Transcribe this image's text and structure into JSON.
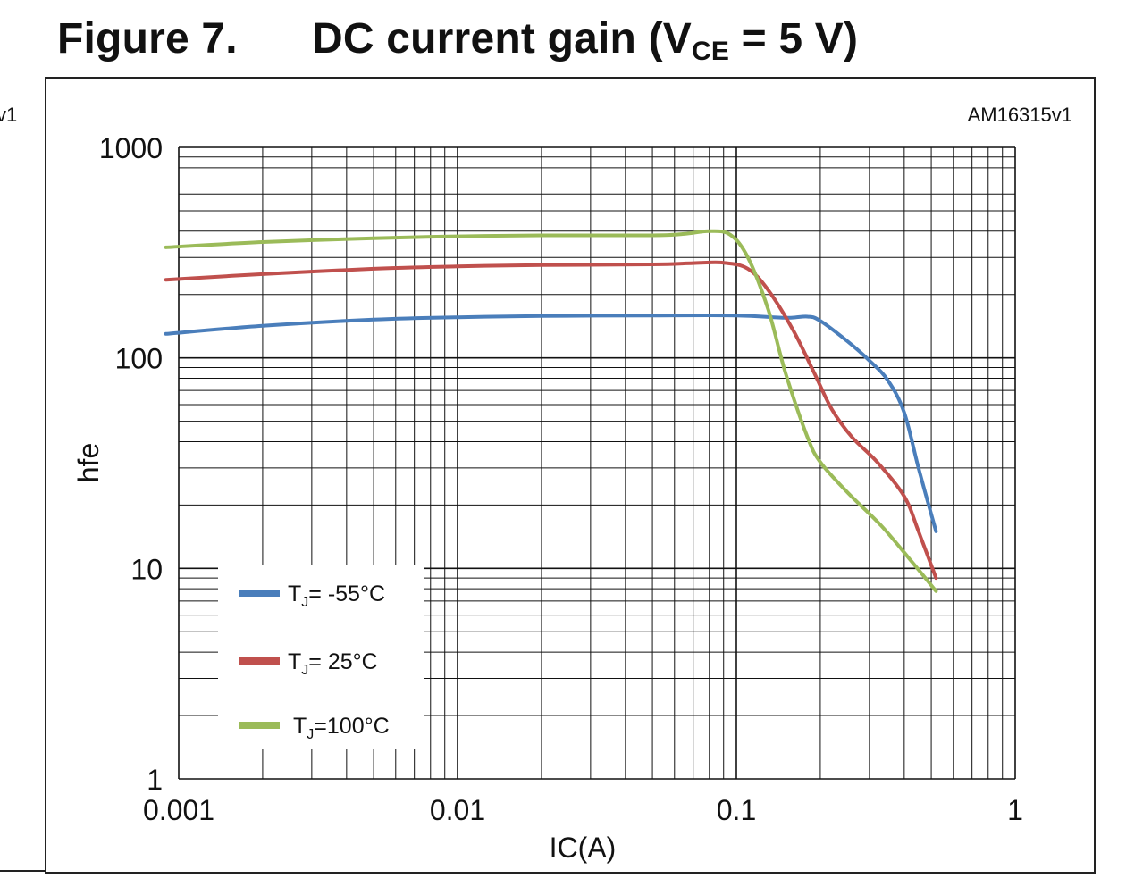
{
  "figure": {
    "number": "Figure 7.",
    "title_main": "DC current gain (V",
    "title_sub": "CE",
    "title_tail": " = 5 V)",
    "left_fragment": "v1",
    "code": "AM16315v1"
  },
  "chart_data": {
    "type": "line",
    "xscale": "log",
    "yscale": "log",
    "xlim": [
      0.001,
      1
    ],
    "ylim": [
      1,
      1000
    ],
    "xlabel": "IC(A)",
    "ylabel": "hfe",
    "xticks": [
      "0.001",
      "0.01",
      "0.1",
      "1"
    ],
    "yticks": [
      "1000",
      "100",
      "10",
      "1"
    ],
    "grid": true,
    "legend_position": "bottom-left",
    "series": [
      {
        "name_main": "T",
        "name_sub": "J",
        "name_tail": "= -55°C",
        "color": "#4a7ebb",
        "points": [
          [
            0.0009,
            130
          ],
          [
            0.002,
            142
          ],
          [
            0.005,
            152
          ],
          [
            0.01,
            156
          ],
          [
            0.02,
            158
          ],
          [
            0.05,
            159
          ],
          [
            0.1,
            159
          ],
          [
            0.15,
            155
          ],
          [
            0.18,
            157
          ],
          [
            0.2,
            150
          ],
          [
            0.25,
            120
          ],
          [
            0.3,
            97
          ],
          [
            0.35,
            78
          ],
          [
            0.4,
            55
          ],
          [
            0.45,
            30
          ],
          [
            0.52,
            15
          ]
        ]
      },
      {
        "name_main": "T",
        "name_sub": "J",
        "name_tail": "= 25°C",
        "color": "#c0504d",
        "points": [
          [
            0.0009,
            235
          ],
          [
            0.002,
            250
          ],
          [
            0.005,
            265
          ],
          [
            0.01,
            272
          ],
          [
            0.02,
            276
          ],
          [
            0.05,
            278
          ],
          [
            0.07,
            282
          ],
          [
            0.09,
            283
          ],
          [
            0.11,
            265
          ],
          [
            0.13,
            210
          ],
          [
            0.16,
            135
          ],
          [
            0.19,
            85
          ],
          [
            0.22,
            57
          ],
          [
            0.26,
            42
          ],
          [
            0.32,
            32
          ],
          [
            0.4,
            22
          ],
          [
            0.45,
            15
          ],
          [
            0.52,
            9
          ]
        ]
      },
      {
        "name_main": "T",
        "name_sub": "J",
        "name_tail": "=100°C",
        "color": "#9bbb59",
        "points": [
          [
            0.0009,
            335
          ],
          [
            0.002,
            355
          ],
          [
            0.005,
            370
          ],
          [
            0.01,
            378
          ],
          [
            0.02,
            382
          ],
          [
            0.05,
            382
          ],
          [
            0.065,
            388
          ],
          [
            0.08,
            400
          ],
          [
            0.095,
            385
          ],
          [
            0.11,
            300
          ],
          [
            0.13,
            170
          ],
          [
            0.15,
            85
          ],
          [
            0.18,
            42
          ],
          [
            0.2,
            32
          ],
          [
            0.25,
            23
          ],
          [
            0.33,
            16
          ],
          [
            0.42,
            11
          ],
          [
            0.52,
            7.8
          ]
        ]
      }
    ]
  }
}
